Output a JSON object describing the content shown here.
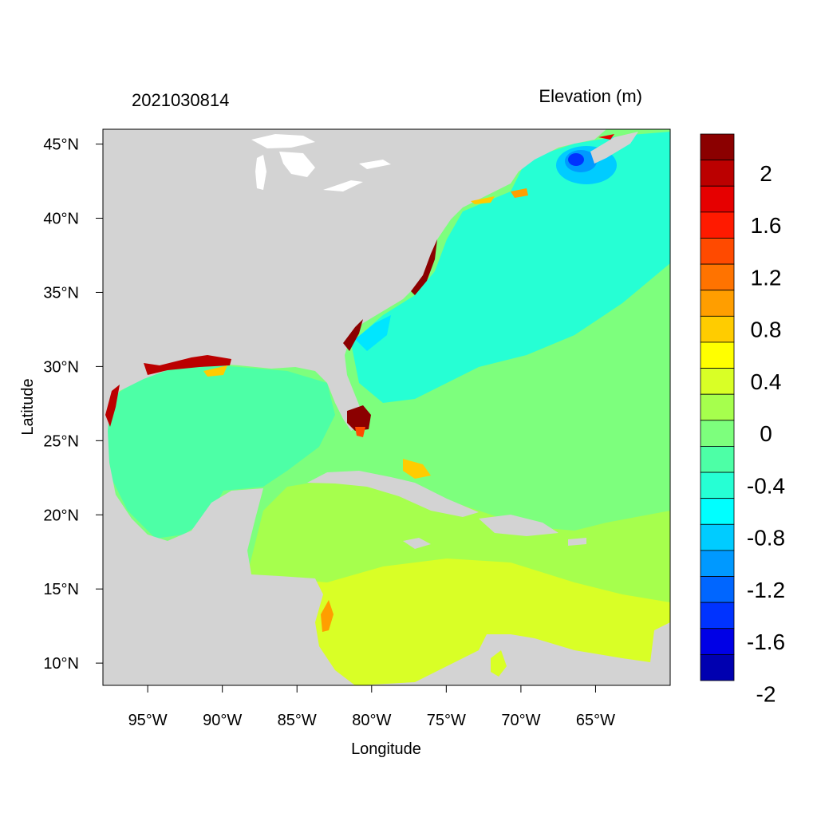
{
  "header": {
    "left_title": "2021030814",
    "right_title": "Elevation (m)"
  },
  "axes": {
    "xlabel": "Longitude",
    "ylabel": "Latitude",
    "xlim": [
      -98,
      -60
    ],
    "ylim": [
      8.5,
      46
    ],
    "xticks": [
      {
        "value": -95,
        "label": "95°W"
      },
      {
        "value": -90,
        "label": "90°W"
      },
      {
        "value": -85,
        "label": "85°W"
      },
      {
        "value": -80,
        "label": "80°W"
      },
      {
        "value": -75,
        "label": "75°W"
      },
      {
        "value": -70,
        "label": "70°W"
      },
      {
        "value": -65,
        "label": "65°W"
      }
    ],
    "yticks": [
      {
        "value": 45,
        "label": "45°N"
      },
      {
        "value": 40,
        "label": "40°N"
      },
      {
        "value": 35,
        "label": "35°N"
      },
      {
        "value": 30,
        "label": "30°N"
      },
      {
        "value": 25,
        "label": "25°N"
      },
      {
        "value": 20,
        "label": "20°N"
      },
      {
        "value": 15,
        "label": "15°N"
      },
      {
        "value": 10,
        "label": "10°N"
      }
    ]
  },
  "colorbar": {
    "colors_top_to_bottom": [
      "#8b0000",
      "#bb0000",
      "#e60000",
      "#ff1a00",
      "#ff4a00",
      "#ff7300",
      "#ff9e00",
      "#ffcc00",
      "#ffff00",
      "#d9ff26",
      "#a6ff4d",
      "#7dff7d",
      "#4dffa6",
      "#26ffd4",
      "#00ffff",
      "#00ccff",
      "#0099ff",
      "#0066ff",
      "#0033ff",
      "#0000e6",
      "#0000b0"
    ],
    "labels": [
      "2",
      "1.6",
      "1.2",
      "0.8",
      "0.4",
      "0",
      "-0.4",
      "-0.8",
      "-1.2",
      "-1.6",
      "-2"
    ]
  },
  "colors": {
    "land": "#d3d3d3",
    "ocean_south_caribbean": "#d9ff26",
    "ocean_caribbean": "#a6ff4d",
    "ocean_atlantic_south": "#7dff7d",
    "ocean_gulf": "#4dffa6",
    "ocean_atlantic_north": "#26ffd4",
    "high_anomaly": "#8b0000",
    "low_anomaly": "#0033ff"
  }
}
